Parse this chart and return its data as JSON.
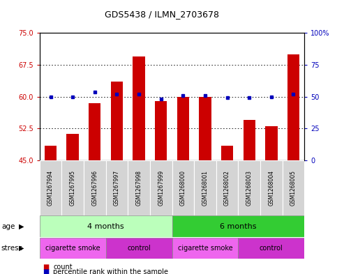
{
  "title": "GDS5438 / ILMN_2703678",
  "samples": [
    "GSM1267994",
    "GSM1267995",
    "GSM1267996",
    "GSM1267997",
    "GSM1267998",
    "GSM1267999",
    "GSM1268000",
    "GSM1268001",
    "GSM1268002",
    "GSM1268003",
    "GSM1268004",
    "GSM1268005"
  ],
  "bar_values": [
    48.5,
    51.2,
    58.5,
    63.5,
    69.5,
    59.0,
    60.0,
    60.0,
    48.5,
    54.5,
    53.0,
    70.0
  ],
  "dot_values_left": [
    60.0,
    60.0,
    61.0,
    60.5,
    60.5,
    59.5,
    60.3,
    60.3,
    59.8,
    59.8,
    60.0,
    60.5
  ],
  "ylim_left": [
    45,
    75
  ],
  "ylim_right": [
    0,
    100
  ],
  "yticks_left": [
    45,
    52.5,
    60,
    67.5,
    75
  ],
  "yticks_right": [
    0,
    25,
    50,
    75,
    100
  ],
  "bar_color": "#cc0000",
  "dot_color": "#0000bb",
  "bar_bottom": 45,
  "age_groups": [
    {
      "label": "4 months",
      "start": 0,
      "end": 6,
      "color": "#bbffbb"
    },
    {
      "label": "6 months",
      "start": 6,
      "end": 12,
      "color": "#33cc33"
    }
  ],
  "stress_groups": [
    {
      "label": "cigarette smoke",
      "start": 0,
      "end": 3,
      "color": "#ee66ee"
    },
    {
      "label": "control",
      "start": 3,
      "end": 6,
      "color": "#cc33cc"
    },
    {
      "label": "cigarette smoke",
      "start": 6,
      "end": 9,
      "color": "#ee66ee"
    },
    {
      "label": "control",
      "start": 9,
      "end": 12,
      "color": "#cc33cc"
    }
  ],
  "bg_color": "#ffffff",
  "tick_label_color_left": "#cc0000",
  "tick_label_color_right": "#0000bb",
  "bar_width": 0.55,
  "legend_count_label": "count",
  "legend_pct_label": "percentile rank within the sample"
}
